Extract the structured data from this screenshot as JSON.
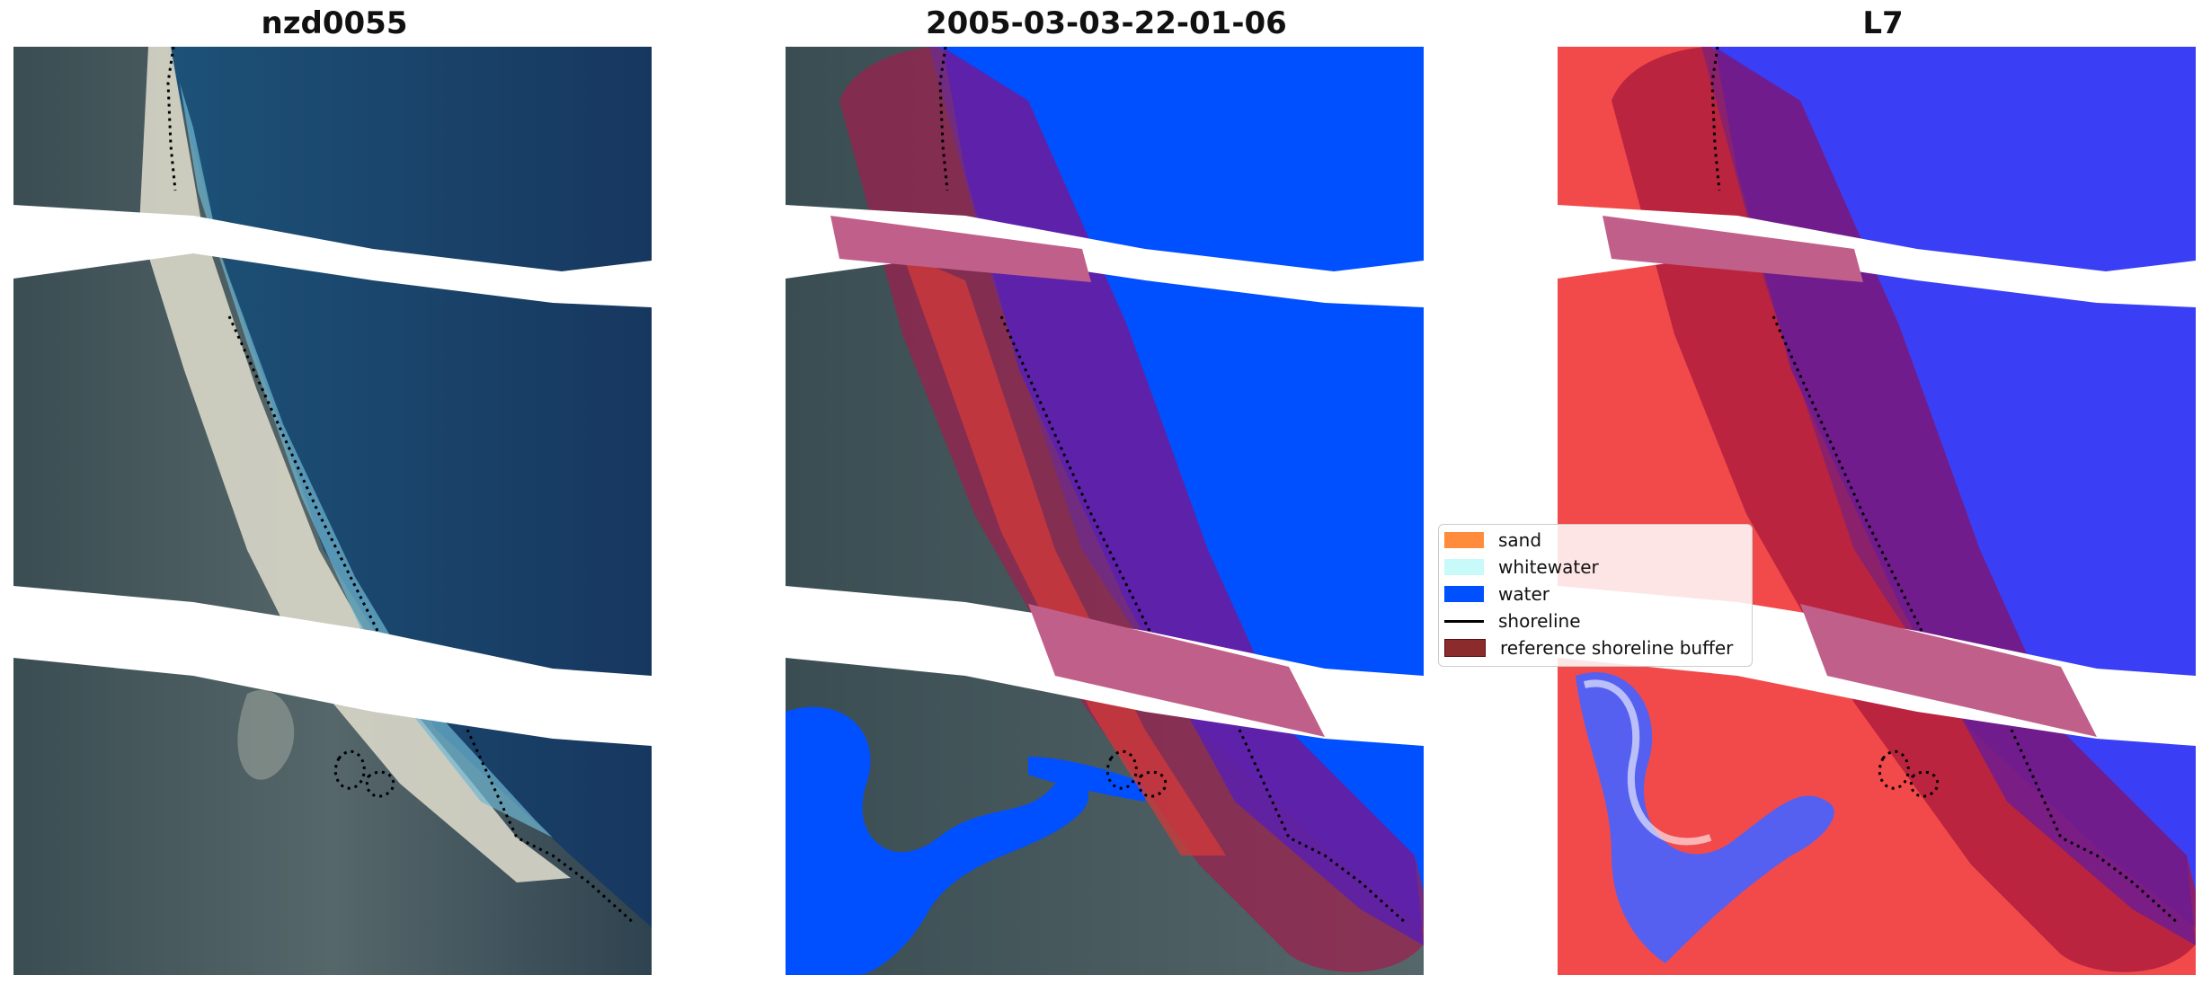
{
  "panels": [
    {
      "title": "nzd0055"
    },
    {
      "title": "2005-03-03-22-01-06"
    },
    {
      "title": "L7"
    }
  ],
  "legend": [
    {
      "label": "sand",
      "color": "#ff8c3c",
      "kind": "patch"
    },
    {
      "label": "whitewater",
      "color": "#c8fafa",
      "kind": "patch"
    },
    {
      "label": "water",
      "color": "#0050ff",
      "kind": "patch"
    },
    {
      "label": "shoreline",
      "color": "#000000",
      "kind": "line"
    },
    {
      "label": "reference shoreline buffer",
      "color": "#8b2b2b",
      "kind": "patch"
    }
  ]
}
